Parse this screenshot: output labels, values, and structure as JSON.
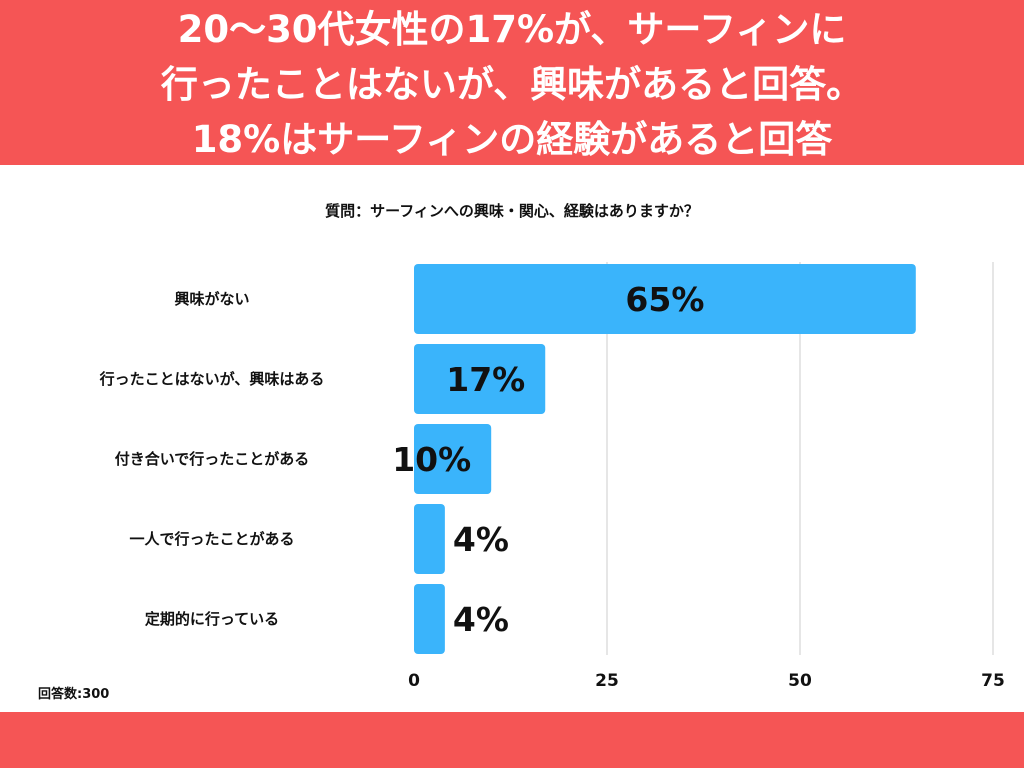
{
  "header": {
    "lines": [
      "20〜30代女性の17%が、サーフィンに",
      "行ったことはないが、興味があると回答。",
      "18%はサーフィンの経験があると回答"
    ]
  },
  "question": "質問：サーフィンへの興味・関心、経験はありますか？",
  "respondents": "回答数:300",
  "colors": {
    "banner": "#f55555",
    "bar": "#3ab4fb",
    "grid": "#cccccc"
  },
  "chart_data": {
    "type": "bar",
    "orientation": "horizontal",
    "categories": [
      "興味がない",
      "行ったことはないが、興味はある",
      "付き合いで行ったことがある",
      "一人で行ったことがある",
      "定期的に行っている"
    ],
    "values": [
      65,
      17,
      10,
      4,
      4
    ],
    "value_labels": [
      "65%",
      "17%",
      "10%",
      "4%",
      "4%"
    ],
    "xlim": [
      0,
      75
    ],
    "ticks": [
      0,
      25,
      50,
      75
    ],
    "grid": true
  }
}
